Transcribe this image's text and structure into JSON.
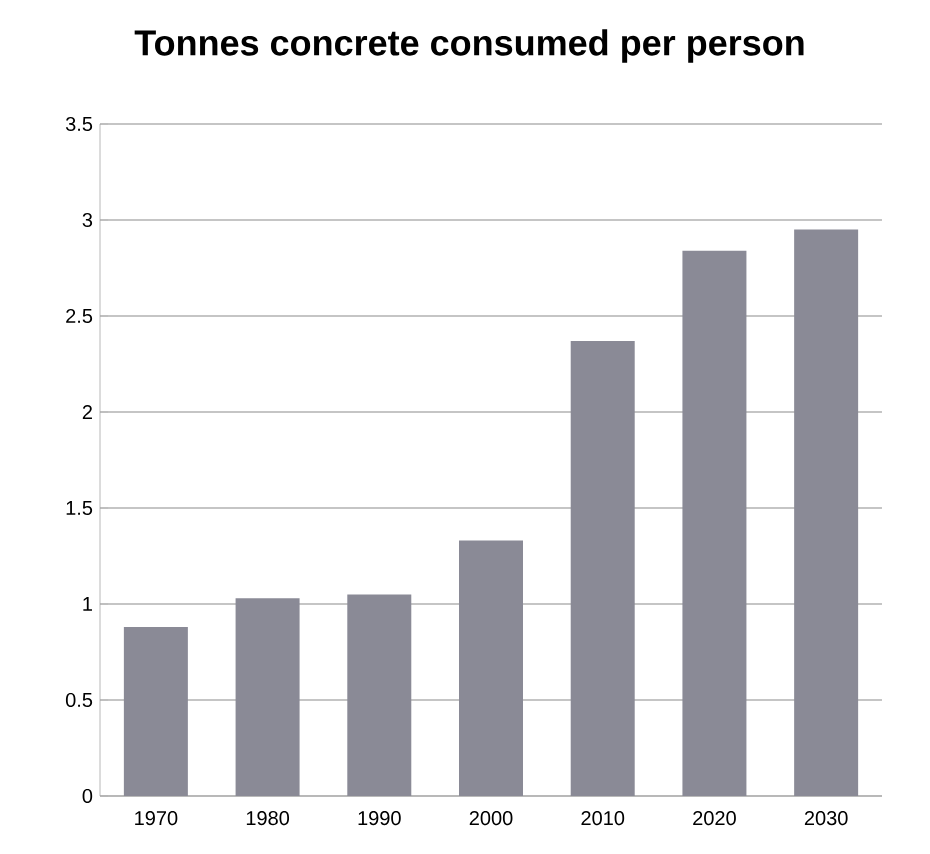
{
  "chart_data": {
    "type": "bar",
    "title": "Tonnes concrete consumed per person",
    "categories": [
      "1970",
      "1980",
      "1990",
      "2000",
      "2010",
      "2020",
      "2030"
    ],
    "values": [
      0.88,
      1.03,
      1.05,
      1.33,
      2.37,
      2.84,
      2.95
    ],
    "color": "#8a8a96",
    "ylim": [
      0,
      3.5
    ],
    "yticks": [
      0,
      0.5,
      1,
      1.5,
      2,
      2.5,
      3,
      3.5
    ],
    "grid": "y"
  }
}
